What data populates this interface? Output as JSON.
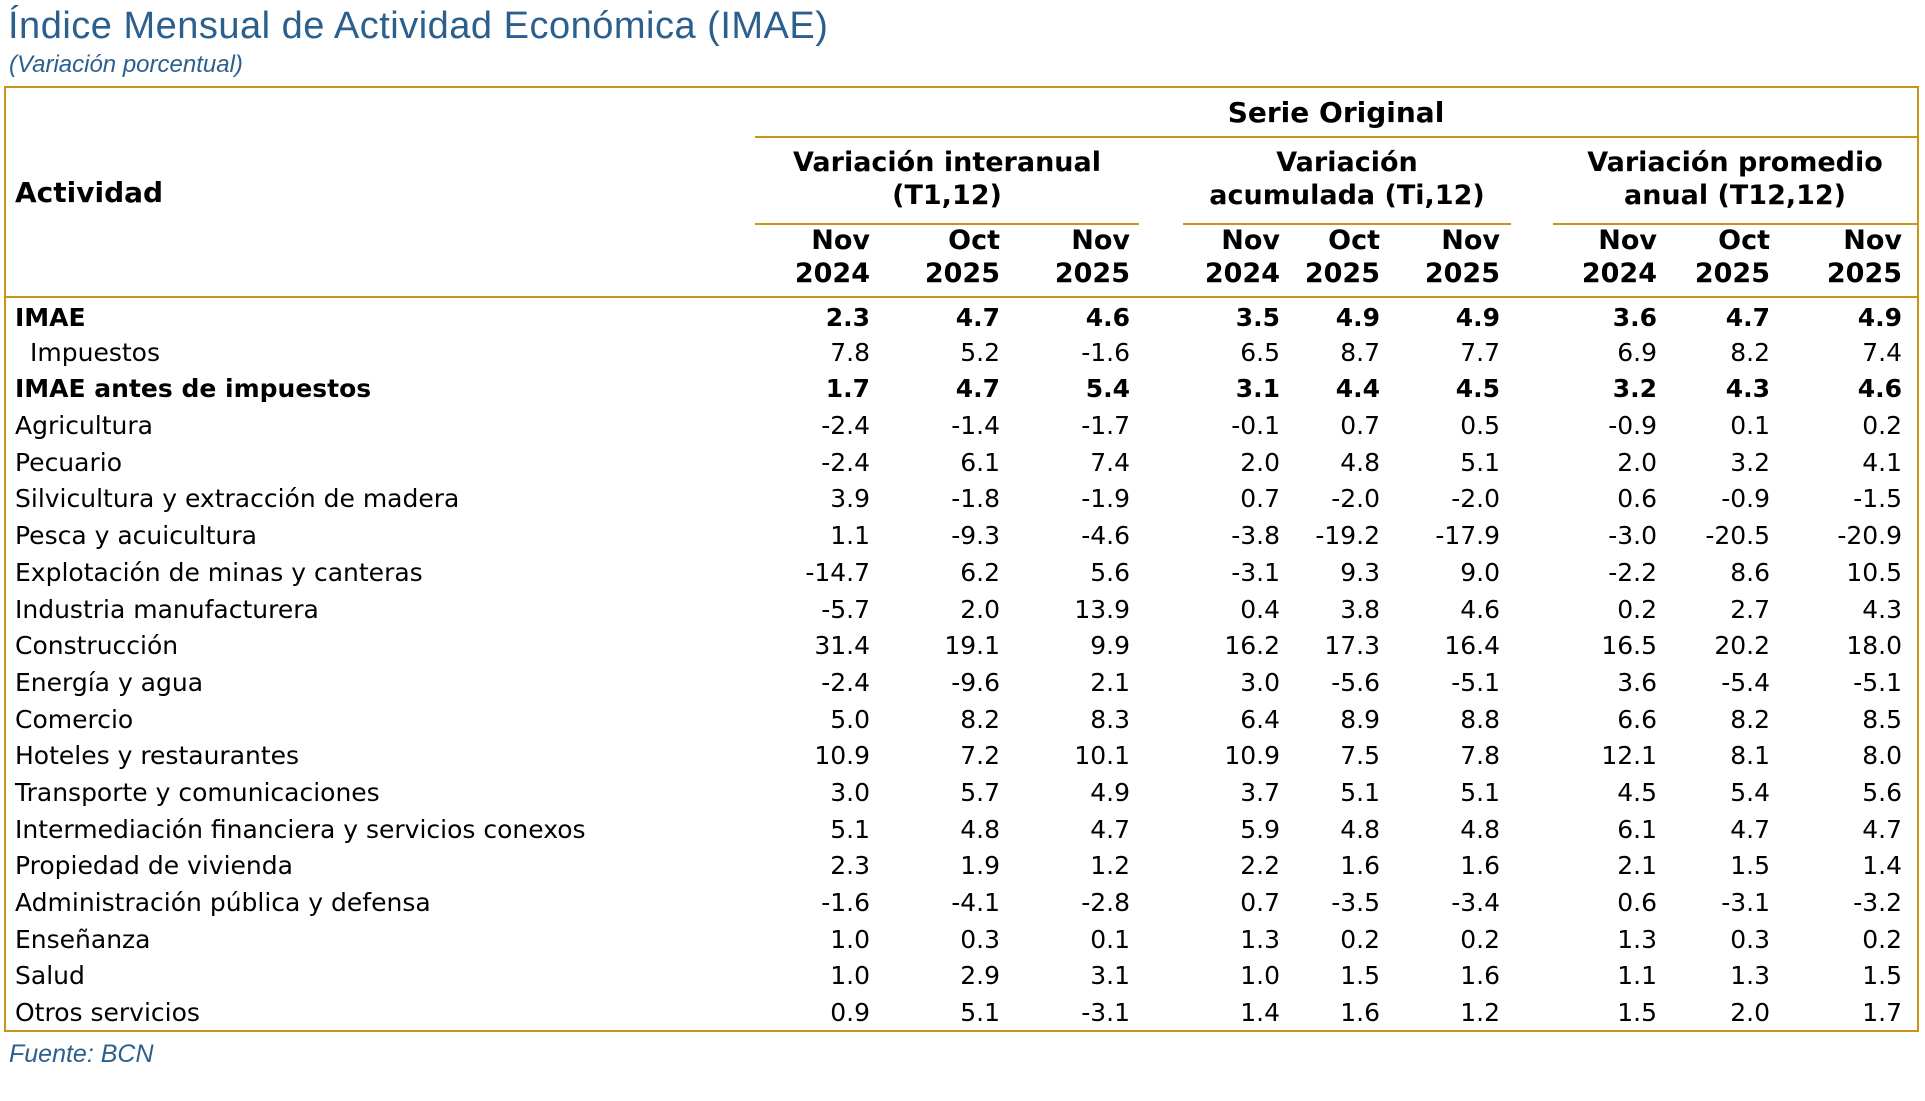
{
  "title": "Índice Mensual de Actividad Económica (IMAE)",
  "subtitle": "(Variación porcentual)",
  "source": "Fuente: BCN",
  "colors": {
    "accent_gold": "#C79417",
    "title_blue": "#2B5F8E"
  },
  "table": {
    "activity_header": "Actividad",
    "series_header": "Serie Original",
    "groups": [
      {
        "line1": "Variación interanual",
        "line2": "(T1,12)"
      },
      {
        "line1": "Variación",
        "line2": "acumulada (Ti,12)"
      },
      {
        "line1": "Variación promedio",
        "line2": "anual (T12,12)"
      }
    ],
    "periods": [
      {
        "month": "Nov",
        "year": "2024"
      },
      {
        "month": "Oct",
        "year": "2025"
      },
      {
        "month": "Nov",
        "year": "2025"
      },
      {
        "month": "Nov",
        "year": "2024"
      },
      {
        "month": "Oct",
        "year": "2025"
      },
      {
        "month": "Nov",
        "year": "2025"
      },
      {
        "month": "Nov",
        "year": "2024"
      },
      {
        "month": "Oct",
        "year": "2025"
      },
      {
        "month": "Nov",
        "year": "2025"
      }
    ],
    "rows": [
      {
        "label": "IMAE",
        "bold": true,
        "indent": false,
        "values": [
          "2.3",
          "4.7",
          "4.6",
          "3.5",
          "4.9",
          "4.9",
          "3.6",
          "4.7",
          "4.9"
        ]
      },
      {
        "label": "Impuestos",
        "bold": false,
        "indent": true,
        "values": [
          "7.8",
          "5.2",
          "-1.6",
          "6.5",
          "8.7",
          "7.7",
          "6.9",
          "8.2",
          "7.4"
        ]
      },
      {
        "label": "IMAE antes de impuestos",
        "bold": true,
        "indent": false,
        "values": [
          "1.7",
          "4.7",
          "5.4",
          "3.1",
          "4.4",
          "4.5",
          "3.2",
          "4.3",
          "4.6"
        ]
      },
      {
        "label": "Agricultura",
        "bold": false,
        "indent": false,
        "values": [
          "-2.4",
          "-1.4",
          "-1.7",
          "-0.1",
          "0.7",
          "0.5",
          "-0.9",
          "0.1",
          "0.2"
        ]
      },
      {
        "label": "Pecuario",
        "bold": false,
        "indent": false,
        "values": [
          "-2.4",
          "6.1",
          "7.4",
          "2.0",
          "4.8",
          "5.1",
          "2.0",
          "3.2",
          "4.1"
        ]
      },
      {
        "label": "Silvicultura y extracción de madera",
        "bold": false,
        "indent": false,
        "values": [
          "3.9",
          "-1.8",
          "-1.9",
          "0.7",
          "-2.0",
          "-2.0",
          "0.6",
          "-0.9",
          "-1.5"
        ]
      },
      {
        "label": "Pesca y acuicultura",
        "bold": false,
        "indent": false,
        "values": [
          "1.1",
          "-9.3",
          "-4.6",
          "-3.8",
          "-19.2",
          "-17.9",
          "-3.0",
          "-20.5",
          "-20.9"
        ]
      },
      {
        "label": "Explotación de minas y canteras",
        "bold": false,
        "indent": false,
        "values": [
          "-14.7",
          "6.2",
          "5.6",
          "-3.1",
          "9.3",
          "9.0",
          "-2.2",
          "8.6",
          "10.5"
        ]
      },
      {
        "label": "Industria manufacturera",
        "bold": false,
        "indent": false,
        "values": [
          "-5.7",
          "2.0",
          "13.9",
          "0.4",
          "3.8",
          "4.6",
          "0.2",
          "2.7",
          "4.3"
        ]
      },
      {
        "label": "Construcción",
        "bold": false,
        "indent": false,
        "values": [
          "31.4",
          "19.1",
          "9.9",
          "16.2",
          "17.3",
          "16.4",
          "16.5",
          "20.2",
          "18.0"
        ]
      },
      {
        "label": "Energía y agua",
        "bold": false,
        "indent": false,
        "values": [
          "-2.4",
          "-9.6",
          "2.1",
          "3.0",
          "-5.6",
          "-5.1",
          "3.6",
          "-5.4",
          "-5.1"
        ]
      },
      {
        "label": "Comercio",
        "bold": false,
        "indent": false,
        "values": [
          "5.0",
          "8.2",
          "8.3",
          "6.4",
          "8.9",
          "8.8",
          "6.6",
          "8.2",
          "8.5"
        ]
      },
      {
        "label": "Hoteles y restaurantes",
        "bold": false,
        "indent": false,
        "values": [
          "10.9",
          "7.2",
          "10.1",
          "10.9",
          "7.5",
          "7.8",
          "12.1",
          "8.1",
          "8.0"
        ]
      },
      {
        "label": "Transporte y comunicaciones",
        "bold": false,
        "indent": false,
        "values": [
          "3.0",
          "5.7",
          "4.9",
          "3.7",
          "5.1",
          "5.1",
          "4.5",
          "5.4",
          "5.6"
        ]
      },
      {
        "label": "Intermediación financiera y servicios conexos",
        "bold": false,
        "indent": false,
        "values": [
          "5.1",
          "4.8",
          "4.7",
          "5.9",
          "4.8",
          "4.8",
          "6.1",
          "4.7",
          "4.7"
        ]
      },
      {
        "label": "Propiedad de vivienda",
        "bold": false,
        "indent": false,
        "values": [
          "2.3",
          "1.9",
          "1.2",
          "2.2",
          "1.6",
          "1.6",
          "2.1",
          "1.5",
          "1.4"
        ]
      },
      {
        "label": "Administración pública y defensa",
        "bold": false,
        "indent": false,
        "values": [
          "-1.6",
          "-4.1",
          "-2.8",
          "0.7",
          "-3.5",
          "-3.4",
          "0.6",
          "-3.1",
          "-3.2"
        ]
      },
      {
        "label": "Enseñanza",
        "bold": false,
        "indent": false,
        "values": [
          "1.0",
          "0.3",
          "0.1",
          "1.3",
          "0.2",
          "0.2",
          "1.3",
          "0.3",
          "0.2"
        ]
      },
      {
        "label": "Salud",
        "bold": false,
        "indent": false,
        "values": [
          "1.0",
          "2.9",
          "3.1",
          "1.0",
          "1.5",
          "1.6",
          "1.1",
          "1.3",
          "1.5"
        ]
      },
      {
        "label": "Otros servicios",
        "bold": false,
        "indent": false,
        "values": [
          "0.9",
          "5.1",
          "-3.1",
          "1.4",
          "1.6",
          "1.2",
          "1.5",
          "2.0",
          "1.7"
        ]
      }
    ]
  }
}
